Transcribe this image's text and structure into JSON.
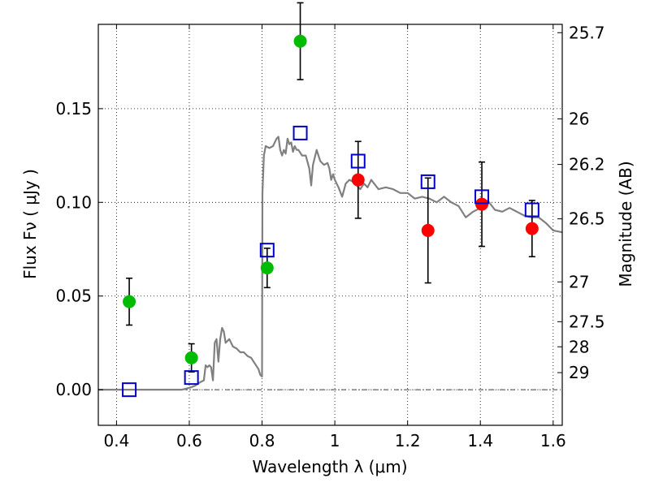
{
  "chart_data": {
    "type": "scatter",
    "xlabel": "Wavelength  λ (μm)",
    "ylabel": "Flux  Fν  ( μJy )",
    "y2label": "Magnitude (AB)",
    "xlim": [
      0.35,
      1.625
    ],
    "ylim": [
      -0.019,
      0.195
    ],
    "grid": true,
    "x_ticks": [
      {
        "value": 0.4,
        "label": "0.4"
      },
      {
        "value": 0.6,
        "label": "0.6"
      },
      {
        "value": 0.8,
        "label": "0.8"
      },
      {
        "value": 1.0,
        "label": "1"
      },
      {
        "value": 1.2,
        "label": "1.2"
      },
      {
        "value": 1.4,
        "label": "1.4"
      },
      {
        "value": 1.6,
        "label": "1.6"
      }
    ],
    "y_ticks": [
      {
        "value": 0.0,
        "label": "0.00"
      },
      {
        "value": 0.05,
        "label": "0.05"
      },
      {
        "value": 0.1,
        "label": "0.10"
      },
      {
        "value": 0.15,
        "label": "0.15"
      }
    ],
    "magnitude_ticks": [
      {
        "value": 25.7,
        "label": "25.7"
      },
      {
        "value": 26.0,
        "label": "26"
      },
      {
        "value": 26.2,
        "label": "26.2"
      },
      {
        "value": 26.5,
        "label": "26.5"
      },
      {
        "value": 27.0,
        "label": "27"
      },
      {
        "value": 27.5,
        "label": "27.5"
      },
      {
        "value": 28.0,
        "label": "28"
      },
      {
        "value": 29.0,
        "label": "29"
      }
    ],
    "colors": {
      "green": "#00bb00",
      "red": "#ff0000",
      "blue": "#0000cc",
      "model": "#808080",
      "errorbar": "#000000"
    },
    "series": [
      {
        "marker": "circle",
        "color": "#00bb00",
        "points": [
          {
            "x": 0.435,
            "y": 0.047,
            "err": 0.0125
          },
          {
            "x": 0.606,
            "y": 0.017,
            "err": 0.0075
          },
          {
            "x": 0.814,
            "y": 0.065,
            "err": 0.0105
          },
          {
            "x": 0.905,
            "y": 0.186,
            "err": 0.0205
          }
        ]
      },
      {
        "marker": "circle",
        "color": "#ff0000",
        "points": [
          {
            "x": 1.064,
            "y": 0.112,
            "err": 0.0205
          },
          {
            "x": 1.256,
            "y": 0.085,
            "err": 0.028
          },
          {
            "x": 1.404,
            "y": 0.099,
            "err": 0.0225
          },
          {
            "x": 1.542,
            "y": 0.086,
            "err": 0.015
          }
        ]
      },
      {
        "marker": "square",
        "color": "#0000cc",
        "points": [
          {
            "x": 0.435,
            "y": 0.0
          },
          {
            "x": 0.606,
            "y": 0.0065
          },
          {
            "x": 0.814,
            "y": 0.0745
          },
          {
            "x": 0.905,
            "y": 0.137
          },
          {
            "x": 1.064,
            "y": 0.122
          },
          {
            "x": 1.256,
            "y": 0.111
          },
          {
            "x": 1.404,
            "y": 0.103
          },
          {
            "x": 1.542,
            "y": 0.096
          }
        ]
      }
    ],
    "model_spectrum": {
      "x": [
        0.35,
        0.58,
        0.59,
        0.6,
        0.615,
        0.63,
        0.64,
        0.645,
        0.65,
        0.655,
        0.66,
        0.665,
        0.67,
        0.675,
        0.68,
        0.685,
        0.69,
        0.695,
        0.7,
        0.71,
        0.72,
        0.73,
        0.74,
        0.75,
        0.76,
        0.77,
        0.78,
        0.79,
        0.795,
        0.8,
        0.801,
        0.805,
        0.81,
        0.82,
        0.83,
        0.84,
        0.845,
        0.85,
        0.855,
        0.86,
        0.865,
        0.87,
        0.875,
        0.88,
        0.885,
        0.89,
        0.895,
        0.9,
        0.91,
        0.92,
        0.93,
        0.935,
        0.94,
        0.95,
        0.96,
        0.97,
        0.98,
        0.985,
        0.99,
        0.995,
        1.0,
        1.01,
        1.02,
        1.03,
        1.04,
        1.05,
        1.06,
        1.07,
        1.08,
        1.09,
        1.1,
        1.12,
        1.14,
        1.16,
        1.18,
        1.2,
        1.22,
        1.24,
        1.26,
        1.28,
        1.3,
        1.32,
        1.34,
        1.36,
        1.38,
        1.4,
        1.42,
        1.44,
        1.46,
        1.48,
        1.5,
        1.52,
        1.54,
        1.56,
        1.58,
        1.6,
        1.625
      ],
      "y": [
        0.0,
        0.0,
        0.0005,
        0.001,
        0.002,
        0.004,
        0.005,
        0.013,
        0.012,
        0.013,
        0.012,
        0.005,
        0.025,
        0.027,
        0.015,
        0.027,
        0.033,
        0.031,
        0.025,
        0.027,
        0.023,
        0.022,
        0.02,
        0.02,
        0.018,
        0.017,
        0.014,
        0.011,
        0.008,
        0.007,
        0.105,
        0.125,
        0.13,
        0.129,
        0.13,
        0.134,
        0.135,
        0.128,
        0.125,
        0.128,
        0.126,
        0.134,
        0.131,
        0.132,
        0.127,
        0.13,
        0.128,
        0.128,
        0.125,
        0.125,
        0.118,
        0.109,
        0.12,
        0.128,
        0.122,
        0.12,
        0.121,
        0.118,
        0.112,
        0.115,
        0.112,
        0.108,
        0.103,
        0.11,
        0.112,
        0.111,
        0.109,
        0.107,
        0.11,
        0.108,
        0.112,
        0.107,
        0.108,
        0.107,
        0.105,
        0.105,
        0.102,
        0.103,
        0.102,
        0.1,
        0.103,
        0.1,
        0.098,
        0.092,
        0.095,
        0.097,
        0.101,
        0.096,
        0.095,
        0.097,
        0.095,
        0.093,
        0.092,
        0.092,
        0.089,
        0.085,
        0.084
      ]
    }
  }
}
